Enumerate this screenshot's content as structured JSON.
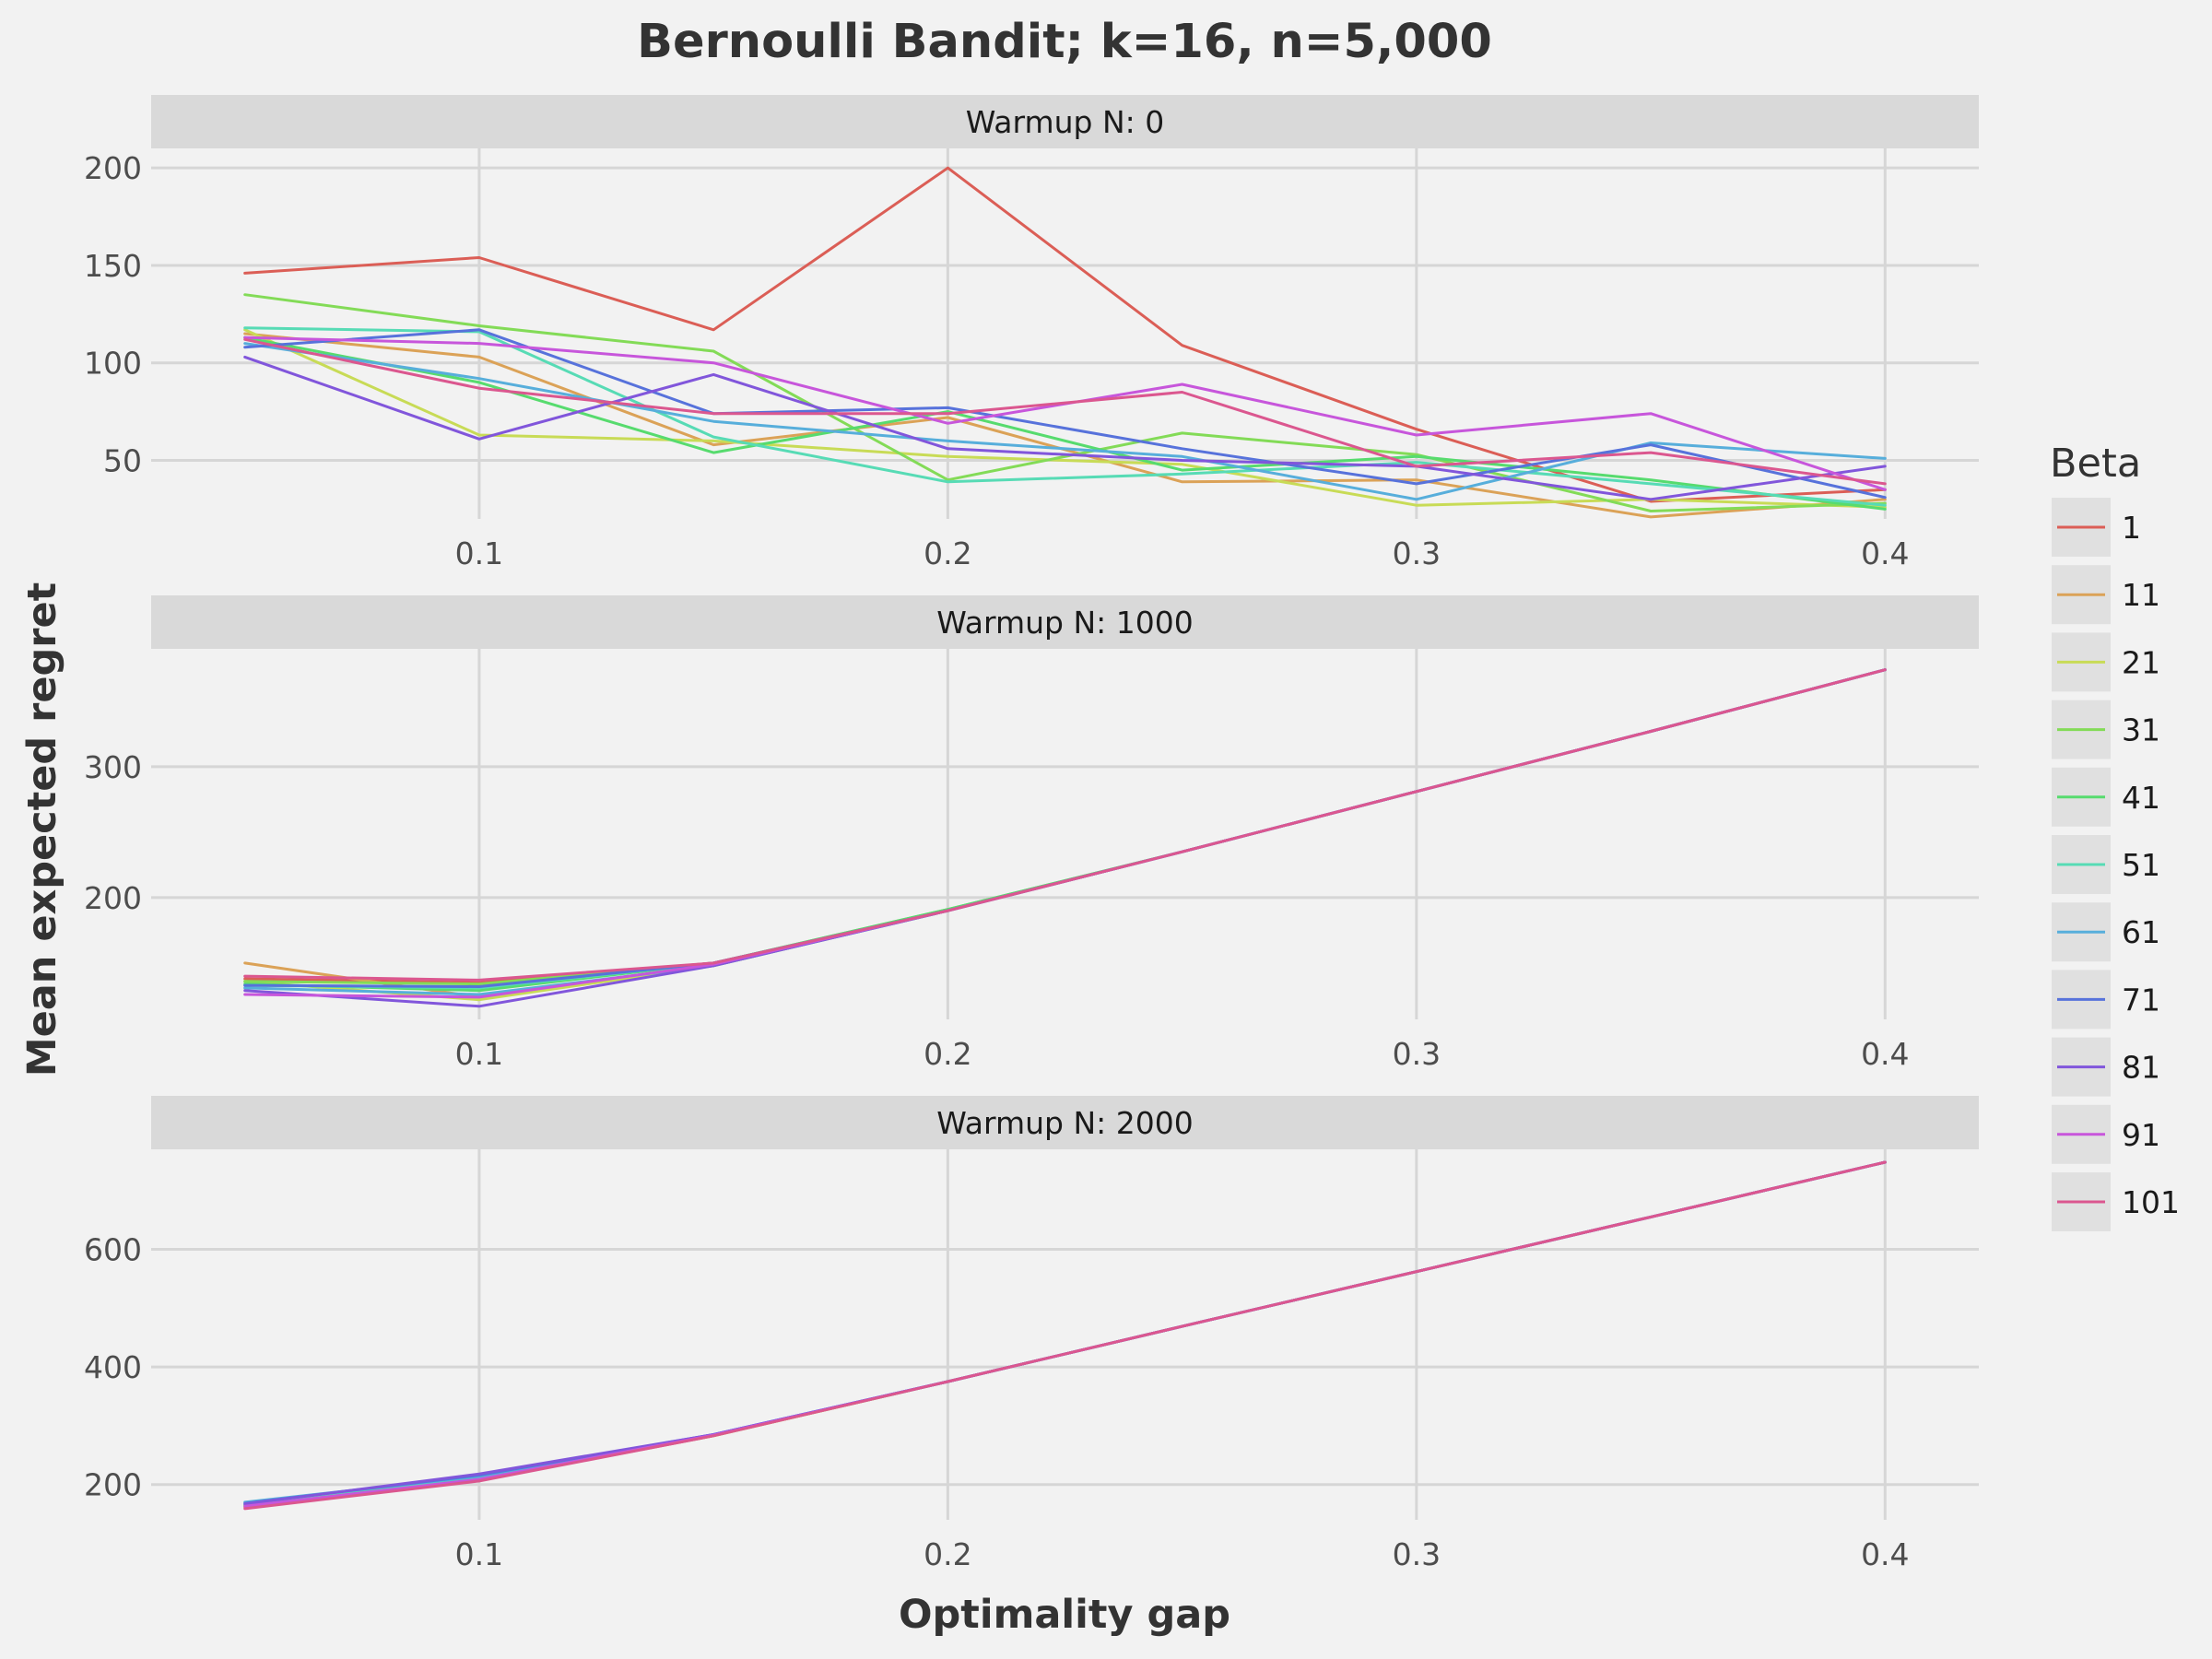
{
  "chart_data": {
    "type": "line",
    "title": "Bernoulli Bandit; k=16, n=5,000",
    "xlabel": "Optimality gap",
    "ylabel": "Mean expected regret",
    "legend": {
      "title": "Beta",
      "placement": "right",
      "entries": [
        "1",
        "11",
        "21",
        "31",
        "41",
        "51",
        "61",
        "71",
        "81",
        "91",
        "101"
      ]
    },
    "grid": true,
    "x": [
      0.05,
      0.1,
      0.15,
      0.2,
      0.25,
      0.3,
      0.35,
      0.4
    ],
    "x_ticks": [
      0.1,
      0.2,
      0.3,
      0.4
    ],
    "x_tick_labels": [
      "0.1",
      "0.2",
      "0.3",
      "0.4"
    ],
    "xlim": [
      0.03,
      0.42
    ],
    "series_colors": [
      "#db5e56",
      "#dba257",
      "#c8db56",
      "#83db57",
      "#57db6e",
      "#57dbb5",
      "#57aedb",
      "#5772db",
      "#8156db",
      "#c756db",
      "#db578f"
    ],
    "panels": [
      {
        "strip": "Warmup N: 0",
        "ylim": [
          20,
          210
        ],
        "y_ticks": [
          50,
          100,
          150,
          200
        ],
        "y_tick_labels": [
          "50",
          "100",
          "150",
          "200"
        ],
        "series": [
          {
            "name": "1",
            "values": [
              146,
              154,
              117,
              200,
              109,
              66,
              29,
              35
            ]
          },
          {
            "name": "11",
            "values": [
              115,
              103,
              58,
              72,
              39,
              40,
              21,
              30
            ]
          },
          {
            "name": "21",
            "values": [
              117,
              63,
              60,
              52,
              48,
              27,
              30,
              26
            ]
          },
          {
            "name": "31",
            "values": [
              135,
              119,
              106,
              40,
              64,
              53,
              24,
              28
            ]
          },
          {
            "name": "41",
            "values": [
              113,
              90,
              54,
              75,
              45,
              52,
              40,
              25
            ]
          },
          {
            "name": "51",
            "values": [
              118,
              116,
              62,
              39,
              43,
              49,
              38,
              27
            ]
          },
          {
            "name": "61",
            "values": [
              110,
              92,
              70,
              60,
              52,
              30,
              59,
              51
            ]
          },
          {
            "name": "71",
            "values": [
              108,
              117,
              74,
              77,
              56,
              38,
              58,
              31
            ]
          },
          {
            "name": "81",
            "values": [
              103,
              61,
              94,
              56,
              50,
              47,
              30,
              47
            ]
          },
          {
            "name": "91",
            "values": [
              113,
              110,
              100,
              69,
              89,
              63,
              74,
              35
            ]
          },
          {
            "name": "101",
            "values": [
              112,
              87,
              74,
              74,
              85,
              47,
              54,
              38
            ]
          }
        ]
      },
      {
        "strip": "Warmup N: 1000",
        "ylim": [
          107,
          390
        ],
        "y_ticks": [
          200,
          300
        ],
        "y_tick_labels": [
          "200",
          "300"
        ],
        "series": [
          {
            "name": "1",
            "values": [
              138,
              135,
              150,
              190,
              235,
              281,
              327,
              374
            ]
          },
          {
            "name": "11",
            "values": [
              150,
              124,
              148,
              190,
              235,
              281,
              327,
              374
            ]
          },
          {
            "name": "21",
            "values": [
              136,
              122,
              148,
              190,
              235,
              281,
              327,
              374
            ]
          },
          {
            "name": "31",
            "values": [
              136,
              134,
              150,
              191,
              235,
              281,
              327,
              374
            ]
          },
          {
            "name": "41",
            "values": [
              134,
              129,
              150,
              191,
              235,
              281,
              327,
              374
            ]
          },
          {
            "name": "51",
            "values": [
              133,
              131,
              150,
              190,
              235,
              281,
              327,
              374
            ]
          },
          {
            "name": "61",
            "values": [
              131,
              126,
              148,
              190,
              235,
              281,
              327,
              374
            ]
          },
          {
            "name": "71",
            "values": [
              133,
              132,
              150,
              190,
              235,
              281,
              327,
              374
            ]
          },
          {
            "name": "81",
            "values": [
              129,
              117,
              148,
              190,
              235,
              281,
              327,
              374
            ]
          },
          {
            "name": "91",
            "values": [
              126,
              124,
              149,
              190,
              235,
              281,
              327,
              374
            ]
          },
          {
            "name": "101",
            "values": [
              140,
              137,
              150,
              190,
              235,
              281,
              327,
              374
            ]
          }
        ]
      },
      {
        "strip": "Warmup N: 2000",
        "ylim": [
          140,
          770
        ],
        "y_ticks": [
          200,
          400,
          600
        ],
        "y_tick_labels": [
          "200",
          "400",
          "600"
        ],
        "series": [
          {
            "name": "1",
            "values": [
              161,
              207,
              283,
              375,
              469,
              562,
              655,
              748
            ]
          },
          {
            "name": "11",
            "values": [
              163,
              208,
              283,
              375,
              469,
              562,
              655,
              748
            ]
          },
          {
            "name": "21",
            "values": [
              162,
              209,
              283,
              375,
              469,
              562,
              655,
              748
            ]
          },
          {
            "name": "31",
            "values": [
              164,
              210,
              284,
              375,
              469,
              562,
              655,
              748
            ]
          },
          {
            "name": "41",
            "values": [
              165,
              211,
              284,
              375,
              469,
              562,
              655,
              748
            ]
          },
          {
            "name": "51",
            "values": [
              166,
              212,
              284,
              375,
              469,
              562,
              655,
              748
            ]
          },
          {
            "name": "61",
            "values": [
              170,
              214,
              285,
              375,
              469,
              562,
              655,
              748
            ]
          },
          {
            "name": "71",
            "values": [
              168,
              216,
              285,
              375,
              469,
              562,
              655,
              748
            ]
          },
          {
            "name": "81",
            "values": [
              167,
              218,
              285,
              375,
              469,
              562,
              655,
              748
            ]
          },
          {
            "name": "91",
            "values": [
              163,
              209,
              284,
              375,
              469,
              562,
              655,
              748
            ]
          },
          {
            "name": "101",
            "values": [
              159,
              206,
              283,
              375,
              469,
              562,
              655,
              748
            ]
          }
        ]
      }
    ]
  }
}
